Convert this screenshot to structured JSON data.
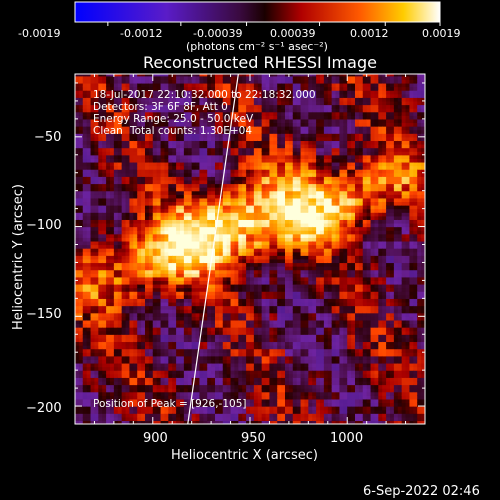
{
  "colorbar": {
    "ticks": [
      "-0.0019",
      "-0.0012",
      "-0.00039",
      "0.00039",
      "0.0012",
      "0.0019"
    ],
    "unit_label": "(photons cm⁻² s⁻¹ asec⁻²)"
  },
  "chart_data": {
    "type": "heatmap",
    "title": "Reconstructed RHESSI Image",
    "xlabel": "Heliocentric X (arcsec)",
    "ylabel": "Heliocentric Y (arcsec)",
    "xlim": [
      860,
      1040
    ],
    "ylim": [
      -210,
      -15
    ],
    "xticks": [
      900,
      950,
      1000
    ],
    "yticks": [
      -50,
      -100,
      -150,
      -200
    ],
    "xtick_labels": [
      "900",
      "950",
      "1000"
    ],
    "ytick_labels": [
      "−50",
      "−100",
      "−150",
      "−200"
    ],
    "colormap": "blue-purple-red-yellow-white",
    "value_range": [
      -0.0019,
      0.0019
    ],
    "sources": [
      {
        "x": 926,
        "y": -105,
        "peak": 0.0019
      },
      {
        "x": 995,
        "y": -90,
        "peak": 0.0013
      }
    ],
    "limb_line": [
      {
        "x": 944,
        "y": -15
      },
      {
        "x": 918,
        "y": -210
      }
    ],
    "annotations": {
      "time_range": "18-Jul-2017 22:10:32.000 to 22:18:32.000",
      "detectors": "Detectors: 3F 6F 8F, Att 0",
      "energy": "Energy Range: 25.0 - 50.0 keV",
      "method": "Clean",
      "counts": "Total counts: 1.30E+04",
      "peak": "Position of Peak = [926,-105]"
    }
  },
  "footer": {
    "timestamp": "6-Sep-2022 02:46"
  }
}
